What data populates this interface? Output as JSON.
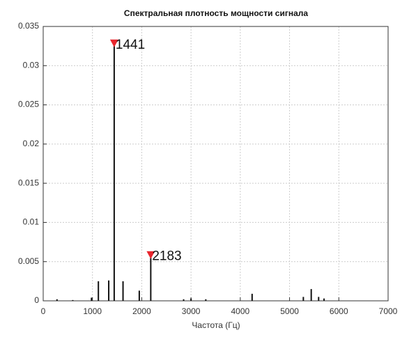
{
  "chart_data": {
    "type": "stem",
    "title": "Спектральная плотность мощности сигнала",
    "x_label": "Частота (Гц)",
    "x": [
      280,
      600,
      980,
      1120,
      1330,
      1441,
      1620,
      1950,
      2183,
      2850,
      3000,
      3300,
      4240,
      5280,
      5440,
      5590,
      5700
    ],
    "values": [
      0.0002,
      0.0001,
      0.0004,
      0.0025,
      0.0026,
      0.0328,
      0.0025,
      0.0013,
      0.0058,
      0.0002,
      0.0003,
      0.0002,
      0.0009,
      0.0005,
      0.0015,
      0.0005,
      0.0003
    ],
    "color": "#111111",
    "peaks": [
      {
        "x": 1441,
        "y": 0.0328
      },
      {
        "x": 2183,
        "y": 0.0058
      }
    ],
    "peak_color": "#e8262d",
    "xlim": [
      0,
      7000
    ],
    "xticks": [
      0,
      1000,
      2000,
      3000,
      4000,
      5000,
      6000,
      7000
    ],
    "ylim": [
      0,
      0.035
    ],
    "yticks": [
      0,
      0.005,
      0.01,
      0.015,
      0.02,
      0.025,
      0.03,
      0.035
    ],
    "grid": true
  }
}
